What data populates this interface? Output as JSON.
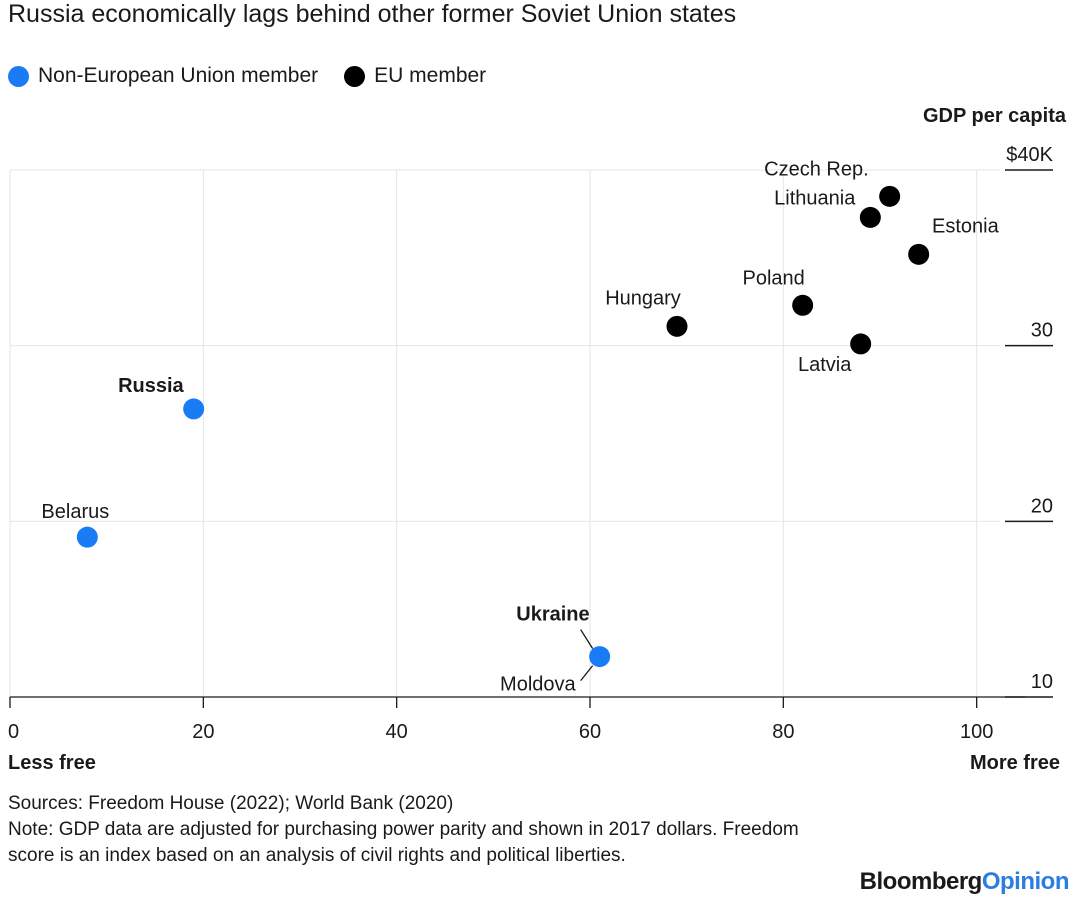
{
  "title": "Russia economically lags behind other former Soviet Union states",
  "legend": [
    {
      "label": "Non-European Union member",
      "color": "#1a7cf5"
    },
    {
      "label": "EU member",
      "color": "#000000"
    }
  ],
  "x_axis": {
    "left_label": "Less free",
    "right_label": "More free"
  },
  "y_axis": {
    "title": "GDP per capita"
  },
  "footer": {
    "sources": "Sources: Freedom House (2022); World Bank (2020)",
    "note": "Note: GDP data are adjusted for purchasing power parity and shown in 2017 dollars. Freedom score is an index based on an analysis of civil rights and political liberties."
  },
  "brand": {
    "part1": "Bloomberg",
    "part2": "Opinion"
  },
  "chart_data": {
    "type": "scatter",
    "title": "Russia economically lags behind other former Soviet Union states",
    "xlabel": "",
    "ylabel": "GDP per capita",
    "xlim": [
      0,
      105
    ],
    "ylim": [
      10,
      40
    ],
    "x_ticks": [
      0,
      20,
      40,
      60,
      80,
      100
    ],
    "x_tick_labels": [
      "0",
      "20",
      "40",
      "60",
      "80",
      "100"
    ],
    "y_ticks": [
      40,
      30,
      20,
      10
    ],
    "y_tick_labels": [
      "$40K",
      "30",
      "20",
      "10"
    ],
    "grid": true,
    "legend_position": "top-left",
    "series": [
      {
        "name": "Non-European Union member",
        "color": "#1a7cf5",
        "points": [
          {
            "label": "Russia",
            "x": 19,
            "y": 26.4,
            "bold": true
          },
          {
            "label": "Belarus",
            "x": 8,
            "y": 19.1,
            "bold": false
          },
          {
            "label": "Ukraine",
            "x": 61,
            "y": 12.3,
            "bold": true
          },
          {
            "label": "Moldova",
            "x": 61,
            "y": 12.3,
            "bold": false
          }
        ]
      },
      {
        "name": "EU member",
        "color": "#000000",
        "points": [
          {
            "label": "Czech Rep.",
            "x": 91,
            "y": 38.5,
            "bold": false
          },
          {
            "label": "Lithuania",
            "x": 89,
            "y": 37.3,
            "bold": false
          },
          {
            "label": "Estonia",
            "x": 94,
            "y": 35.2,
            "bold": false
          },
          {
            "label": "Poland",
            "x": 82,
            "y": 32.3,
            "bold": false
          },
          {
            "label": "Hungary",
            "x": 69,
            "y": 31.1,
            "bold": false
          },
          {
            "label": "Latvia",
            "x": 88,
            "y": 30.1,
            "bold": false
          }
        ]
      }
    ]
  }
}
